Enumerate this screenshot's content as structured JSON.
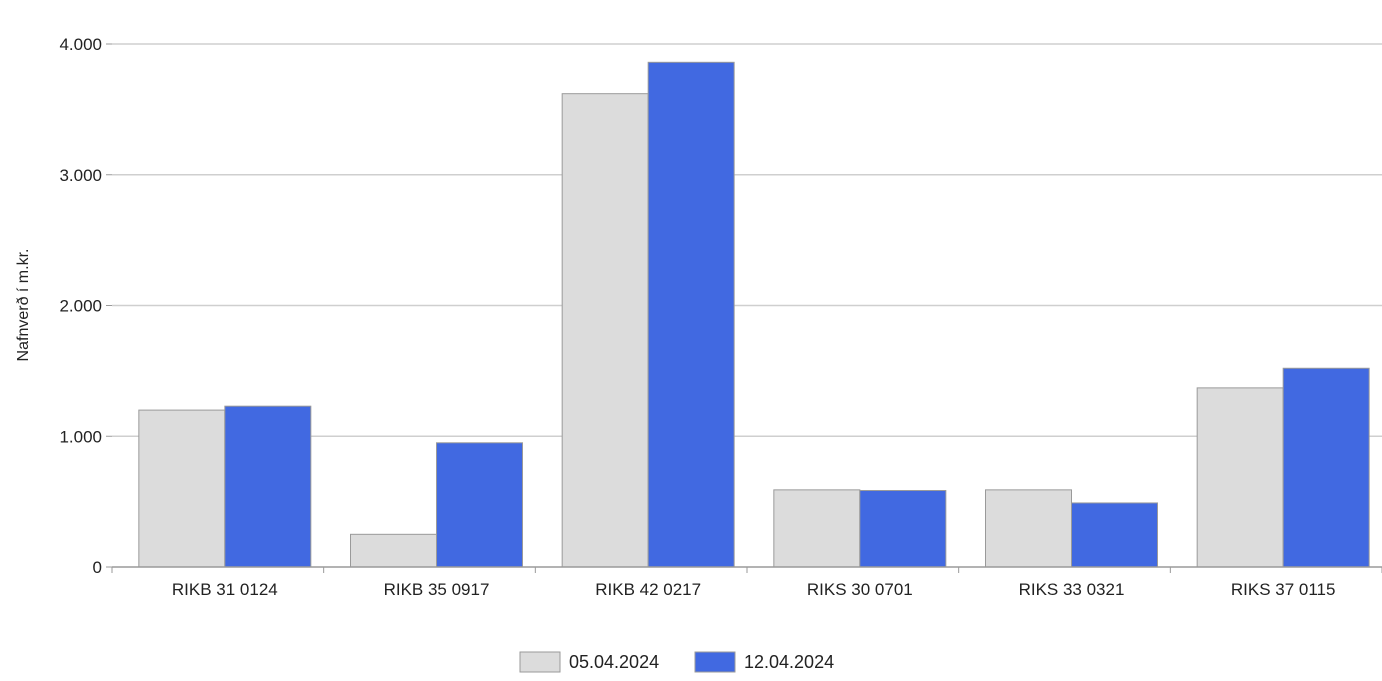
{
  "chart_data": {
    "type": "bar",
    "title": "",
    "xlabel": "",
    "ylabel": "Nafnverð í m.kr.",
    "ylim": [
      0,
      4000
    ],
    "yticks": [
      0,
      1000,
      2000,
      3000,
      4000
    ],
    "ytick_labels": [
      "0",
      "1.000",
      "2.000",
      "3.000",
      "4.000"
    ],
    "grid": true,
    "legend_position": "bottom",
    "categories": [
      "RIKB 31 0124",
      "RIKB 35 0917",
      "RIKB 42 0217",
      "RIKS 30 0701",
      "RIKS 33 0321",
      "RIKS 37 0115"
    ],
    "series": [
      {
        "name": "05.04.2024",
        "color": "#dcdcdc",
        "values": [
          1200,
          250,
          3620,
          590,
          590,
          1370
        ]
      },
      {
        "name": "12.04.2024",
        "color": "#4169e1",
        "values": [
          1230,
          950,
          3860,
          585,
          490,
          1520
        ]
      }
    ]
  }
}
